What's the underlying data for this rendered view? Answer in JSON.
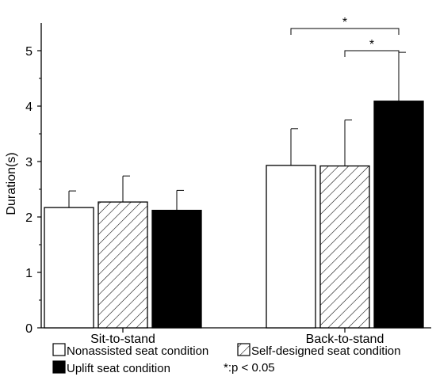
{
  "chart_data": {
    "type": "bar",
    "ylabel": "Duration(s)",
    "xlabel": "",
    "ylim": [
      0,
      5.5
    ],
    "yticks": [
      0,
      1,
      2,
      3,
      4,
      5
    ],
    "grid": false,
    "categories": [
      "Sit-to-stand",
      "Back-to-stand"
    ],
    "series": [
      {
        "name": "Nonassisted seat condition",
        "fill": "white",
        "values": [
          2.17,
          2.93
        ],
        "errors": [
          0.3,
          0.66
        ]
      },
      {
        "name": "Self-designed seat condition",
        "fill": "hatch",
        "values": [
          2.27,
          2.92
        ],
        "errors": [
          0.47,
          0.83
        ]
      },
      {
        "name": "Uplift seat condition",
        "fill": "black",
        "values": [
          2.12,
          4.09
        ],
        "errors": [
          0.36,
          0.88
        ]
      }
    ],
    "significance": [
      {
        "from_series": 0,
        "to_series": 2,
        "category": 1,
        "label": "*"
      },
      {
        "from_series": 1,
        "to_series": 2,
        "category": 1,
        "label": "*"
      }
    ],
    "note": "*:p < 0.05",
    "legend_position": "bottom"
  }
}
